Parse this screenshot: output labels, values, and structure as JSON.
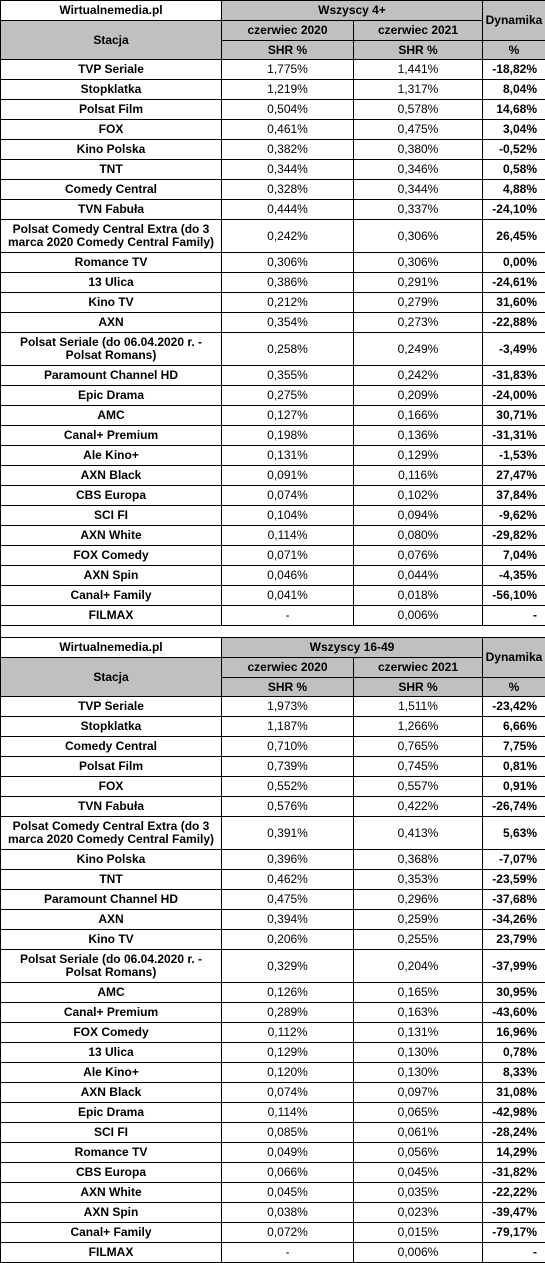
{
  "tables": [
    {
      "brand": "Wirtualnemedia.pl",
      "group": "Wszyscy 4+",
      "station_label": "Stacja",
      "period1": "czerwiec 2020",
      "period2": "czerwiec 2021",
      "shr1": "SHR %",
      "shr2": "SHR %",
      "dyn_label": "Dynamika",
      "dyn_unit": "%",
      "rows": [
        {
          "station": "TVP Seriale",
          "v2020": "1,775%",
          "v2021": "1,441%",
          "dyn": "-18,82%"
        },
        {
          "station": "Stopklatka",
          "v2020": "1,219%",
          "v2021": "1,317%",
          "dyn": "8,04%"
        },
        {
          "station": "Polsat Film",
          "v2020": "0,504%",
          "v2021": "0,578%",
          "dyn": "14,68%"
        },
        {
          "station": "FOX",
          "v2020": "0,461%",
          "v2021": "0,475%",
          "dyn": "3,04%"
        },
        {
          "station": "Kino Polska",
          "v2020": "0,382%",
          "v2021": "0,380%",
          "dyn": "-0,52%"
        },
        {
          "station": "TNT",
          "v2020": "0,344%",
          "v2021": "0,346%",
          "dyn": "0,58%"
        },
        {
          "station": "Comedy Central",
          "v2020": "0,328%",
          "v2021": "0,344%",
          "dyn": "4,88%"
        },
        {
          "station": "TVN Fabuła",
          "v2020": "0,444%",
          "v2021": "0,337%",
          "dyn": "-24,10%"
        },
        {
          "station": "Polsat Comedy Central Extra (do 3 marca 2020 Comedy Central Family)",
          "v2020": "0,242%",
          "v2021": "0,306%",
          "dyn": "26,45%",
          "tall": true
        },
        {
          "station": "Romance TV",
          "v2020": "0,306%",
          "v2021": "0,306%",
          "dyn": "0,00%"
        },
        {
          "station": "13 Ulica",
          "v2020": "0,386%",
          "v2021": "0,291%",
          "dyn": "-24,61%"
        },
        {
          "station": "Kino TV",
          "v2020": "0,212%",
          "v2021": "0,279%",
          "dyn": "31,60%"
        },
        {
          "station": "AXN",
          "v2020": "0,354%",
          "v2021": "0,273%",
          "dyn": "-22,88%"
        },
        {
          "station": "Polsat Seriale (do 06.04.2020 r. - Polsat Romans)",
          "v2020": "0,258%",
          "v2021": "0,249%",
          "dyn": "-3,49%",
          "tall": true
        },
        {
          "station": "Paramount Channel HD",
          "v2020": "0,355%",
          "v2021": "0,242%",
          "dyn": "-31,83%"
        },
        {
          "station": "Epic Drama",
          "v2020": "0,275%",
          "v2021": "0,209%",
          "dyn": "-24,00%"
        },
        {
          "station": "AMC",
          "v2020": "0,127%",
          "v2021": "0,166%",
          "dyn": "30,71%"
        },
        {
          "station": "Canal+ Premium",
          "v2020": "0,198%",
          "v2021": "0,136%",
          "dyn": "-31,31%"
        },
        {
          "station": "Ale Kino+",
          "v2020": "0,131%",
          "v2021": "0,129%",
          "dyn": "-1,53%"
        },
        {
          "station": "AXN Black",
          "v2020": "0,091%",
          "v2021": "0,116%",
          "dyn": "27,47%"
        },
        {
          "station": "CBS Europa",
          "v2020": "0,074%",
          "v2021": "0,102%",
          "dyn": "37,84%"
        },
        {
          "station": "SCI FI",
          "v2020": "0,104%",
          "v2021": "0,094%",
          "dyn": "-9,62%"
        },
        {
          "station": "AXN White",
          "v2020": "0,114%",
          "v2021": "0,080%",
          "dyn": "-29,82%"
        },
        {
          "station": "FOX Comedy",
          "v2020": "0,071%",
          "v2021": "0,076%",
          "dyn": "7,04%"
        },
        {
          "station": "AXN Spin",
          "v2020": "0,046%",
          "v2021": "0,044%",
          "dyn": "-4,35%"
        },
        {
          "station": "Canal+ Family",
          "v2020": "0,041%",
          "v2021": "0,018%",
          "dyn": "-56,10%"
        },
        {
          "station": "FILMAX",
          "v2020": "-",
          "v2021": "0,006%",
          "dyn": "-"
        }
      ]
    },
    {
      "brand": "Wirtualnemedia.pl",
      "group": "Wszyscy 16-49",
      "station_label": "Stacja",
      "period1": "czerwiec 2020",
      "period2": "czerwiec 2021",
      "shr1": "SHR %",
      "shr2": "SHR %",
      "dyn_label": "Dynamika",
      "dyn_unit": "%",
      "rows": [
        {
          "station": "TVP Seriale",
          "v2020": "1,973%",
          "v2021": "1,511%",
          "dyn": "-23,42%"
        },
        {
          "station": "Stopklatka",
          "v2020": "1,187%",
          "v2021": "1,266%",
          "dyn": "6,66%"
        },
        {
          "station": "Comedy Central",
          "v2020": "0,710%",
          "v2021": "0,765%",
          "dyn": "7,75%"
        },
        {
          "station": "Polsat Film",
          "v2020": "0,739%",
          "v2021": "0,745%",
          "dyn": "0,81%"
        },
        {
          "station": "FOX",
          "v2020": "0,552%",
          "v2021": "0,557%",
          "dyn": "0,91%"
        },
        {
          "station": "TVN Fabuła",
          "v2020": "0,576%",
          "v2021": "0,422%",
          "dyn": "-26,74%"
        },
        {
          "station": "Polsat Comedy Central Extra (do 3 marca 2020 Comedy Central Family)",
          "v2020": "0,391%",
          "v2021": "0,413%",
          "dyn": "5,63%",
          "tall": true
        },
        {
          "station": "Kino Polska",
          "v2020": "0,396%",
          "v2021": "0,368%",
          "dyn": "-7,07%"
        },
        {
          "station": "TNT",
          "v2020": "0,462%",
          "v2021": "0,353%",
          "dyn": "-23,59%"
        },
        {
          "station": "Paramount Channel HD",
          "v2020": "0,475%",
          "v2021": "0,296%",
          "dyn": "-37,68%"
        },
        {
          "station": "AXN",
          "v2020": "0,394%",
          "v2021": "0,259%",
          "dyn": "-34,26%"
        },
        {
          "station": "Kino TV",
          "v2020": "0,206%",
          "v2021": "0,255%",
          "dyn": "23,79%"
        },
        {
          "station": "Polsat Seriale (do 06.04.2020 r. - Polsat Romans)",
          "v2020": "0,329%",
          "v2021": "0,204%",
          "dyn": "-37,99%",
          "tall": true
        },
        {
          "station": "AMC",
          "v2020": "0,126%",
          "v2021": "0,165%",
          "dyn": "30,95%"
        },
        {
          "station": "Canal+ Premium",
          "v2020": "0,289%",
          "v2021": "0,163%",
          "dyn": "-43,60%"
        },
        {
          "station": "FOX Comedy",
          "v2020": "0,112%",
          "v2021": "0,131%",
          "dyn": "16,96%"
        },
        {
          "station": "13 Ulica",
          "v2020": "0,129%",
          "v2021": "0,130%",
          "dyn": "0,78%"
        },
        {
          "station": "Ale Kino+",
          "v2020": "0,120%",
          "v2021": "0,130%",
          "dyn": "8,33%"
        },
        {
          "station": "AXN Black",
          "v2020": "0,074%",
          "v2021": "0,097%",
          "dyn": "31,08%"
        },
        {
          "station": "Epic Drama",
          "v2020": "0,114%",
          "v2021": "0,065%",
          "dyn": "-42,98%"
        },
        {
          "station": "SCI FI",
          "v2020": "0,085%",
          "v2021": "0,061%",
          "dyn": "-28,24%"
        },
        {
          "station": "Romance TV",
          "v2020": "0,049%",
          "v2021": "0,056%",
          "dyn": "14,29%"
        },
        {
          "station": "CBS Europa",
          "v2020": "0,066%",
          "v2021": "0,045%",
          "dyn": "-31,82%"
        },
        {
          "station": "AXN White",
          "v2020": "0,045%",
          "v2021": "0,035%",
          "dyn": "-22,22%"
        },
        {
          "station": "AXN Spin",
          "v2020": "0,038%",
          "v2021": "0,023%",
          "dyn": "-39,47%"
        },
        {
          "station": "Canal+ Family",
          "v2020": "0,072%",
          "v2021": "0,015%",
          "dyn": "-79,17%"
        },
        {
          "station": "FILMAX",
          "v2020": "-",
          "v2021": "0,006%",
          "dyn": "-"
        }
      ]
    }
  ]
}
